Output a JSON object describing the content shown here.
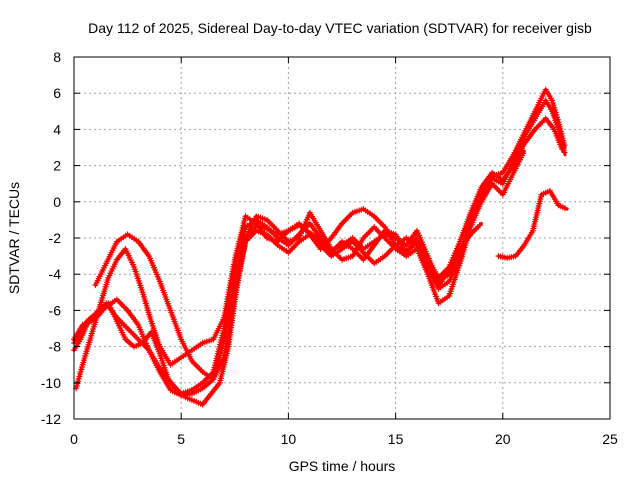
{
  "chart_data": {
    "type": "scatter",
    "title": "Day 112 of 2025, Sidereal Day-to-day VTEC variation (SDTVAR) for receiver gisb",
    "xlabel": "GPS time / hours",
    "ylabel": "SDTVAR / TECUs",
    "xlim": [
      0,
      25
    ],
    "ylim": [
      -12,
      8
    ],
    "xticks": [
      0,
      5,
      10,
      15,
      20,
      25
    ],
    "yticks": [
      -12,
      -10,
      -8,
      -6,
      -4,
      -2,
      0,
      2,
      4,
      6,
      8
    ],
    "grid": true,
    "marker": "+",
    "color": "#ff0000",
    "series": [
      {
        "name": "track-1",
        "x": [
          0.0,
          0.3,
          0.6,
          1.0,
          1.5,
          2.0,
          2.5,
          3.0,
          3.5,
          4.0,
          4.5,
          5.0,
          5.5,
          6.0,
          6.5,
          7.0,
          7.5,
          8.0,
          8.5,
          9.0,
          9.5,
          10.0,
          10.5,
          11.0,
          11.5,
          12.0,
          12.5,
          13.0,
          13.5,
          14.0,
          14.5,
          15.0,
          15.5,
          16.0,
          16.5,
          17.0,
          17.5,
          18.0,
          18.5,
          19.0,
          19.5,
          20.0,
          20.5,
          21.0,
          21.5,
          22.0,
          22.3,
          22.6,
          22.9
        ],
        "y": [
          -7.8,
          -7.2,
          -6.6,
          -6.2,
          -5.8,
          -5.4,
          -6.0,
          -6.8,
          -8.2,
          -9.4,
          -10.4,
          -10.7,
          -10.6,
          -10.3,
          -9.8,
          -7.6,
          -4.6,
          -2.2,
          -1.3,
          -1.5,
          -1.8,
          -1.6,
          -1.3,
          -1.7,
          -2.2,
          -2.7,
          -2.4,
          -2.0,
          -2.6,
          -2.2,
          -1.8,
          -2.0,
          -2.4,
          -1.6,
          -3.0,
          -4.4,
          -4.0,
          -2.8,
          -1.2,
          0.6,
          1.3,
          1.0,
          2.2,
          3.6,
          4.6,
          5.6,
          5.0,
          4.0,
          2.6
        ]
      },
      {
        "name": "track-2",
        "x": [
          0.0,
          0.3,
          0.6,
          1.0,
          1.5,
          2.0,
          2.5,
          3.0,
          3.5,
          4.0,
          4.5,
          5.0,
          5.5,
          6.0,
          6.5,
          7.0,
          7.5,
          8.0,
          8.5,
          9.0,
          9.5,
          10.0,
          10.5,
          11.0,
          11.5,
          12.0,
          12.5,
          13.0,
          13.5,
          14.0,
          14.5,
          15.0,
          15.5,
          16.0,
          16.5,
          17.0,
          17.5,
          18.0,
          18.5,
          19.0,
          19.5,
          20.0,
          20.5,
          21.0,
          21.5,
          22.0,
          22.3,
          22.6,
          22.9
        ],
        "y": [
          -8.2,
          -7.6,
          -6.8,
          -6.2,
          -5.6,
          -6.4,
          -7.0,
          -7.6,
          -8.2,
          -9.2,
          -10.0,
          -10.6,
          -10.4,
          -10.0,
          -9.4,
          -7.0,
          -3.8,
          -1.4,
          -1.0,
          -1.4,
          -2.0,
          -2.4,
          -1.8,
          -1.2,
          -2.0,
          -2.8,
          -2.2,
          -2.6,
          -3.2,
          -2.4,
          -1.6,
          -1.8,
          -2.8,
          -2.2,
          -3.6,
          -4.8,
          -4.4,
          -3.2,
          -1.0,
          0.2,
          1.4,
          1.6,
          2.6,
          3.8,
          5.0,
          6.2,
          5.6,
          4.4,
          3.0
        ]
      },
      {
        "name": "track-3",
        "x": [
          0.1,
          0.4,
          0.8,
          1.2,
          1.6,
          2.0,
          2.4,
          2.8,
          3.2,
          3.6,
          4.0,
          4.5,
          5.0,
          5.5,
          6.0,
          6.5,
          7.0,
          7.5,
          8.0,
          8.5,
          9.0,
          9.5,
          10.0,
          10.5,
          11.0,
          11.5,
          12.0,
          12.5,
          13.0,
          13.5,
          14.0,
          14.5,
          15.0,
          15.5,
          16.0,
          16.5,
          17.0,
          17.5,
          18.0,
          18.5,
          19.0,
          19.5,
          20.0,
          20.5,
          21.0,
          21.5,
          22.0,
          22.4,
          22.8
        ],
        "y": [
          -10.3,
          -9.0,
          -7.4,
          -5.8,
          -4.2,
          -3.2,
          -2.6,
          -3.6,
          -5.0,
          -6.6,
          -8.0,
          -9.0,
          -8.6,
          -8.2,
          -7.8,
          -7.6,
          -6.4,
          -3.2,
          -0.8,
          -1.2,
          -2.0,
          -2.2,
          -1.6,
          -1.2,
          -1.8,
          -2.6,
          -2.0,
          -1.2,
          -0.6,
          -0.4,
          -0.8,
          -1.4,
          -2.4,
          -2.8,
          -2.0,
          -3.2,
          -4.2,
          -3.6,
          -2.2,
          -0.6,
          0.8,
          1.6,
          1.2,
          2.0,
          3.2,
          4.0,
          4.6,
          4.0,
          2.8
        ]
      },
      {
        "name": "track-4",
        "x": [
          1.0,
          1.5,
          2.0,
          2.5,
          3.0,
          3.5,
          4.0,
          4.5,
          5.0,
          5.5,
          6.0,
          6.5,
          7.0,
          7.5,
          8.0,
          8.5,
          9.0,
          9.5,
          10.0,
          10.5,
          11.0,
          11.5,
          12.0,
          12.5,
          13.0,
          13.5,
          14.0,
          14.5,
          15.0,
          15.5,
          16.0,
          16.5,
          17.0,
          17.5,
          18.0,
          18.5,
          19.0,
          19.5,
          20.0,
          20.5,
          21.0
        ],
        "y": [
          -4.6,
          -3.4,
          -2.2,
          -1.8,
          -2.2,
          -3.0,
          -4.4,
          -6.0,
          -7.6,
          -8.8,
          -9.4,
          -9.8,
          -8.6,
          -5.4,
          -2.0,
          -0.8,
          -1.0,
          -1.6,
          -2.2,
          -2.0,
          -0.6,
          -1.6,
          -2.6,
          -3.2,
          -3.0,
          -2.0,
          -1.4,
          -2.0,
          -2.6,
          -3.0,
          -2.6,
          -4.0,
          -5.6,
          -5.2,
          -3.4,
          -1.4,
          0.0,
          1.0,
          0.4,
          1.6,
          2.8
        ]
      },
      {
        "name": "track-5",
        "x": [
          0.0,
          0.4,
          0.8,
          1.2,
          1.6,
          2.0,
          2.4,
          2.8,
          3.2,
          3.6,
          4.0,
          4.4,
          4.8,
          5.2,
          5.6,
          6.0,
          6.4,
          6.8,
          7.2,
          7.6,
          8.0,
          8.5,
          9.0,
          9.5,
          10.0,
          10.5,
          11.0,
          11.5,
          12.0,
          12.5,
          13.0,
          13.5,
          14.0,
          14.5,
          15.0,
          15.5,
          16.0,
          16.5,
          17.0,
          17.5,
          18.0,
          18.5,
          19.0
        ],
        "y": [
          -7.6,
          -6.8,
          -6.6,
          -6.2,
          -5.6,
          -6.6,
          -7.6,
          -8.0,
          -7.8,
          -7.2,
          -8.4,
          -9.8,
          -10.4,
          -10.8,
          -11.0,
          -11.2,
          -10.6,
          -10.0,
          -8.0,
          -4.6,
          -2.2,
          -1.6,
          -1.8,
          -2.4,
          -2.8,
          -2.2,
          -1.8,
          -2.4,
          -3.0,
          -2.6,
          -2.2,
          -2.8,
          -3.4,
          -3.0,
          -2.4,
          -2.0,
          -2.4,
          -3.6,
          -4.6,
          -3.8,
          -2.6,
          -1.8,
          -1.2
        ]
      },
      {
        "name": "track-6",
        "x": [
          19.8,
          20.2,
          20.6,
          21.0,
          21.4,
          21.8,
          22.2,
          22.6,
          23.0
        ],
        "y": [
          -3.0,
          -3.1,
          -3.0,
          -2.4,
          -1.6,
          0.4,
          0.6,
          -0.2,
          -0.4
        ]
      }
    ]
  }
}
